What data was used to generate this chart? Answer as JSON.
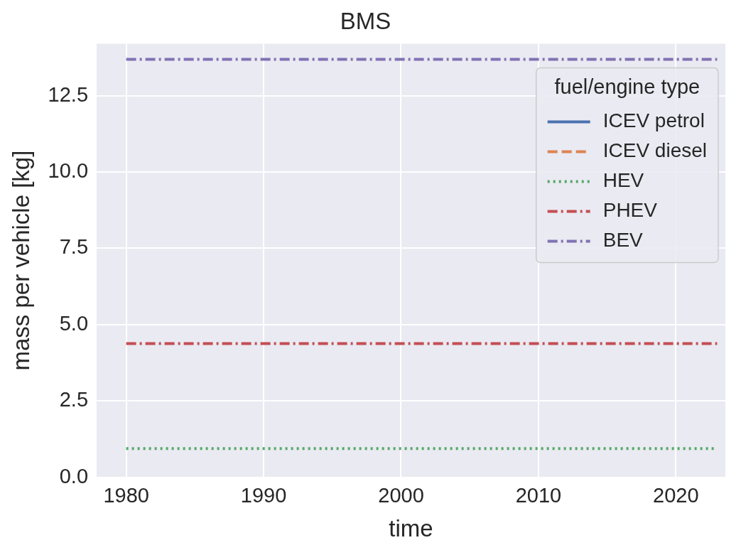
{
  "chart_data": {
    "type": "line",
    "title": "BMS",
    "xlabel": "time",
    "ylabel": "mass per vehicle [kg]",
    "legend_title": "fuel/engine type",
    "x": [
      1980,
      2023
    ],
    "series": [
      {
        "name": "ICEV petrol",
        "color": "#4c72b0",
        "values": [
          null,
          null
        ],
        "line_style": "solid"
      },
      {
        "name": "ICEV diesel",
        "color": "#dd8452",
        "values": [
          null,
          null
        ],
        "line_style": "dashed"
      },
      {
        "name": "HEV",
        "color": "#55a868",
        "values": [
          0.94,
          0.94
        ],
        "line_style": "dotted"
      },
      {
        "name": "PHEV",
        "color": "#c44e52",
        "values": [
          4.38,
          4.38
        ],
        "line_style": "dashdot"
      },
      {
        "name": "BEV",
        "color": "#8172b3",
        "values": [
          13.69,
          13.69
        ],
        "line_style": "dashdot"
      }
    ],
    "xlim": [
      1977.85,
      2023.6
    ],
    "xticks": [
      1980,
      1990,
      2000,
      2010,
      2020
    ],
    "ylim": [
      0,
      14.2
    ],
    "yticks": [
      {
        "value": 0,
        "label": "0.0"
      },
      2.5,
      {
        "value": 5,
        "label": "5.0"
      },
      7.5,
      {
        "value": 10,
        "label": "10.0"
      },
      12.5
    ],
    "grid": true,
    "legend": "top right",
    "marker": "none"
  }
}
